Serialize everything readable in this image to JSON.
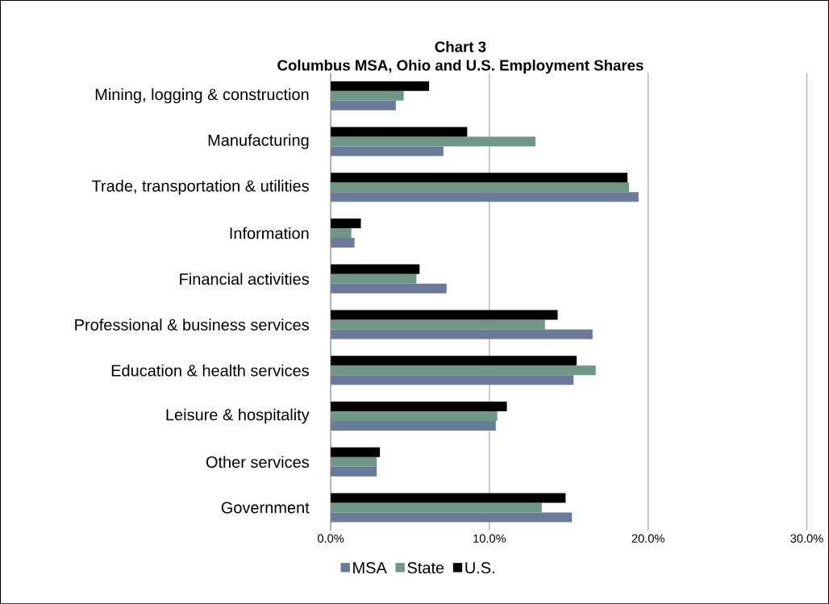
{
  "chart_data": {
    "type": "bar",
    "orientation": "horizontal",
    "title": "Chart 3",
    "subtitle": "Columbus MSA, Ohio and U.S. Employment Shares",
    "categories": [
      "Mining, logging & construction",
      "Manufacturing",
      "Trade, transportation & utilities",
      "Information",
      "Financial activities",
      "Professional & business services",
      "Education & health services",
      "Leisure & hospitality",
      "Other services",
      "Government"
    ],
    "series": [
      {
        "name": "MSA",
        "color": "#6b7a9b",
        "values": [
          4.1,
          7.1,
          19.4,
          1.5,
          7.3,
          16.5,
          15.3,
          10.4,
          2.9,
          15.2
        ]
      },
      {
        "name": "State",
        "color": "#6f9786",
        "values": [
          4.6,
          12.9,
          18.8,
          1.3,
          5.4,
          13.5,
          16.7,
          10.5,
          2.9,
          13.3
        ]
      },
      {
        "name": "U.S.",
        "color": "#000000",
        "values": [
          6.2,
          8.6,
          18.7,
          1.9,
          5.6,
          14.3,
          15.5,
          11.1,
          3.1,
          14.8
        ]
      }
    ],
    "xlim": [
      0,
      30
    ],
    "xticks": [
      {
        "value": 0,
        "label": "0.0%"
      },
      {
        "value": 10,
        "label": "10.0%"
      },
      {
        "value": 20,
        "label": "20.0%"
      },
      {
        "value": 30,
        "label": "30.0%"
      }
    ],
    "grid": "x",
    "legend": "bottom"
  }
}
